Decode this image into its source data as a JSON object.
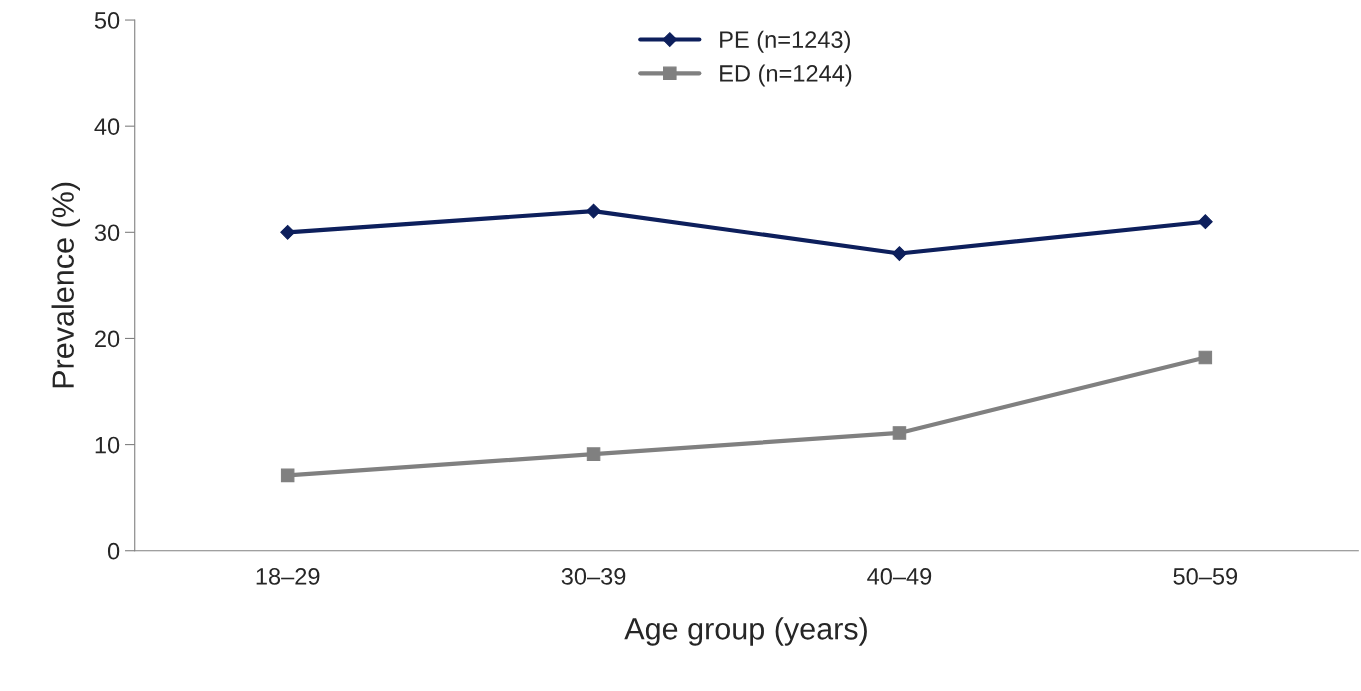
{
  "chart_data": {
    "type": "line",
    "xlabel": "Age group (years)",
    "ylabel": "Prevalence (%)",
    "categories": [
      "18–29",
      "30–39",
      "40–49",
      "50–59"
    ],
    "series": [
      {
        "name": "PE (n=1243)",
        "color": "#0d1f5c",
        "marker": "diamond",
        "values": [
          30,
          32,
          28,
          31
        ]
      },
      {
        "name": "ED (n=1244)",
        "color": "#808080",
        "marker": "square",
        "values": [
          7.1,
          9.1,
          11.1,
          18.2
        ]
      }
    ],
    "ylim": [
      0,
      50
    ],
    "yticks": [
      0,
      10,
      20,
      30,
      40,
      50
    ],
    "grid": false,
    "legend": "top",
    "line_style": "solid"
  }
}
